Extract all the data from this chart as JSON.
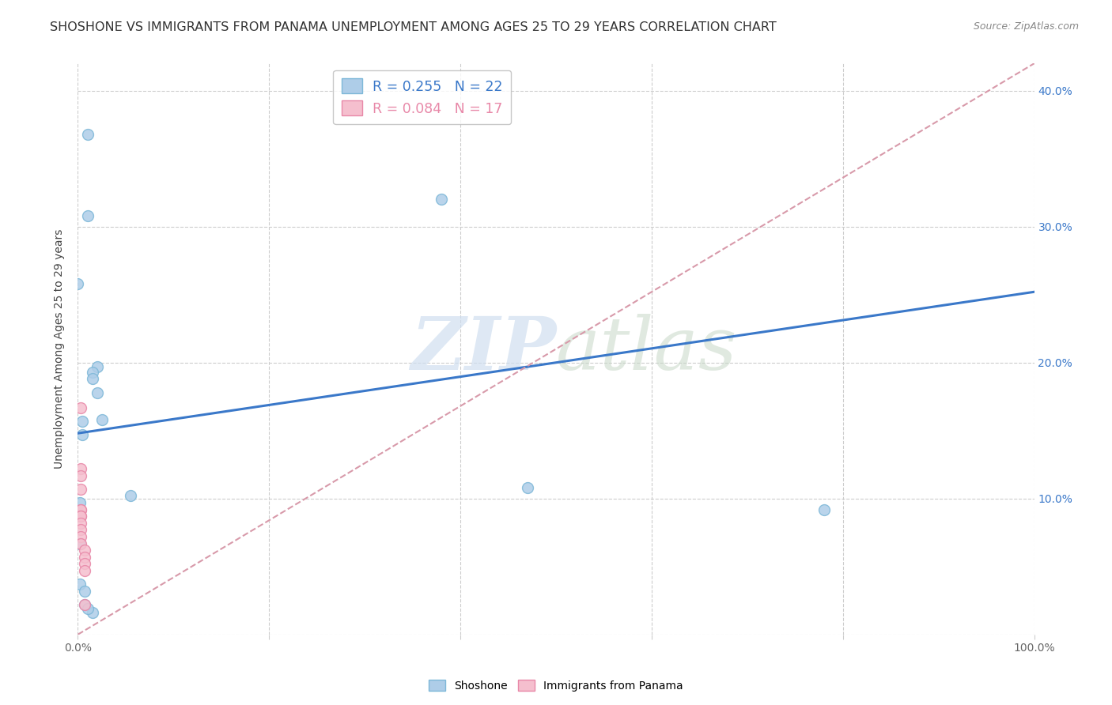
{
  "title": "SHOSHONE VS IMMIGRANTS FROM PANAMA UNEMPLOYMENT AMONG AGES 25 TO 29 YEARS CORRELATION CHART",
  "source": "Source: ZipAtlas.com",
  "ylabel": "Unemployment Among Ages 25 to 29 years",
  "xlim": [
    0.0,
    1.0
  ],
  "ylim": [
    0.0,
    0.42
  ],
  "x_ticks": [
    0.0,
    0.2,
    0.4,
    0.6,
    0.8,
    1.0
  ],
  "x_tick_labels": [
    "0.0%",
    "",
    "",
    "",
    "",
    "100.0%"
  ],
  "y_ticks": [
    0.0,
    0.1,
    0.2,
    0.3,
    0.4
  ],
  "y_tick_labels_left": [
    "",
    "",
    "",
    "",
    ""
  ],
  "y_tick_labels_right": [
    "",
    "10.0%",
    "20.0%",
    "30.0%",
    "40.0%"
  ],
  "watermark_zip": "ZIP",
  "watermark_atlas": "atlas",
  "shoshone_R": "0.255",
  "shoshone_N": "22",
  "panama_R": "0.084",
  "panama_N": "17",
  "shoshone_color": "#aecde8",
  "shoshone_edge": "#7eb8d8",
  "panama_color": "#f5bfce",
  "panama_edge": "#e888a8",
  "shoshone_line_color": "#3a78c9",
  "panama_line_color": "#d89aaa",
  "shoshone_x": [
    0.01,
    0.01,
    0.0,
    0.02,
    0.015,
    0.015,
    0.02,
    0.025,
    0.005,
    0.005,
    0.002,
    0.002,
    0.055,
    0.002,
    0.38,
    0.002,
    0.007,
    0.007,
    0.47,
    0.78,
    0.015,
    0.01
  ],
  "shoshone_y": [
    0.368,
    0.308,
    0.258,
    0.197,
    0.193,
    0.188,
    0.178,
    0.158,
    0.157,
    0.147,
    0.088,
    0.097,
    0.102,
    0.067,
    0.32,
    0.037,
    0.032,
    0.022,
    0.108,
    0.092,
    0.016,
    0.019
  ],
  "panama_x": [
    0.003,
    0.003,
    0.003,
    0.003,
    0.003,
    0.003,
    0.003,
    0.003,
    0.003,
    0.003,
    0.003,
    0.003,
    0.007,
    0.007,
    0.007,
    0.007,
    0.007
  ],
  "panama_y": [
    0.167,
    0.122,
    0.117,
    0.107,
    0.092,
    0.092,
    0.087,
    0.087,
    0.082,
    0.077,
    0.072,
    0.067,
    0.062,
    0.057,
    0.052,
    0.047,
    0.022
  ],
  "shoshone_line_x": [
    0.0,
    1.0
  ],
  "shoshone_line_y": [
    0.148,
    0.252
  ],
  "panama_line_x": [
    0.0,
    1.0
  ],
  "panama_line_y": [
    0.0,
    0.42
  ],
  "marker_size": 100,
  "grid_color": "#cccccc",
  "bg_color": "#ffffff",
  "title_fontsize": 11.5,
  "label_fontsize": 10,
  "tick_fontsize": 10,
  "legend_fontsize": 12.5
}
